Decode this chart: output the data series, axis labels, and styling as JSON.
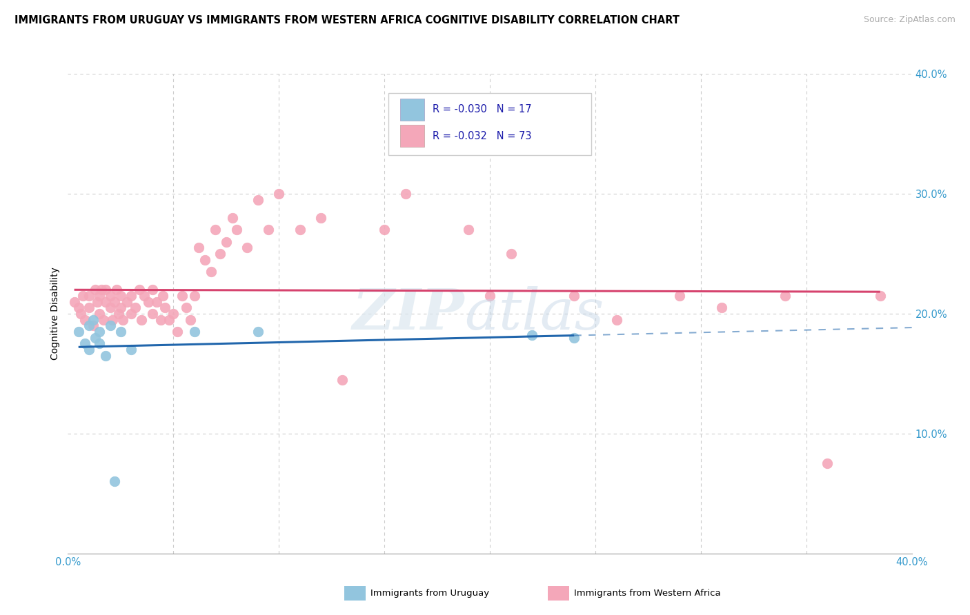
{
  "title": "IMMIGRANTS FROM URUGUAY VS IMMIGRANTS FROM WESTERN AFRICA COGNITIVE DISABILITY CORRELATION CHART",
  "source": "Source: ZipAtlas.com",
  "ylabel": "Cognitive Disability",
  "xlim": [
    0.0,
    0.4
  ],
  "ylim": [
    0.0,
    0.4
  ],
  "grid_color": "#cccccc",
  "legend_R1": "-0.030",
  "legend_N1": "17",
  "legend_R2": "-0.032",
  "legend_N2": "73",
  "color_uruguay": "#92c5de",
  "color_w_africa": "#f4a7b9",
  "line_color_uruguay": "#2166ac",
  "line_color_w_africa": "#d6436e",
  "uruguay_x": [
    0.005,
    0.008,
    0.01,
    0.01,
    0.012,
    0.013,
    0.015,
    0.015,
    0.018,
    0.02,
    0.022,
    0.025,
    0.03,
    0.06,
    0.09,
    0.22,
    0.24
  ],
  "uruguay_y": [
    0.185,
    0.175,
    0.17,
    0.19,
    0.195,
    0.18,
    0.185,
    0.175,
    0.165,
    0.19,
    0.06,
    0.185,
    0.17,
    0.185,
    0.185,
    0.182,
    0.18
  ],
  "w_africa_x": [
    0.003,
    0.005,
    0.006,
    0.007,
    0.008,
    0.01,
    0.01,
    0.012,
    0.013,
    0.014,
    0.015,
    0.015,
    0.016,
    0.017,
    0.018,
    0.018,
    0.02,
    0.02,
    0.021,
    0.022,
    0.023,
    0.024,
    0.025,
    0.025,
    0.026,
    0.028,
    0.03,
    0.03,
    0.032,
    0.034,
    0.035,
    0.036,
    0.038,
    0.04,
    0.04,
    0.042,
    0.044,
    0.045,
    0.046,
    0.048,
    0.05,
    0.052,
    0.054,
    0.056,
    0.058,
    0.06,
    0.062,
    0.065,
    0.068,
    0.07,
    0.072,
    0.075,
    0.078,
    0.08,
    0.085,
    0.09,
    0.095,
    0.1,
    0.11,
    0.12,
    0.13,
    0.15,
    0.16,
    0.19,
    0.2,
    0.21,
    0.24,
    0.26,
    0.29,
    0.31,
    0.34,
    0.36,
    0.385
  ],
  "w_africa_y": [
    0.21,
    0.205,
    0.2,
    0.215,
    0.195,
    0.205,
    0.215,
    0.19,
    0.22,
    0.21,
    0.2,
    0.215,
    0.22,
    0.195,
    0.21,
    0.22,
    0.205,
    0.215,
    0.195,
    0.21,
    0.22,
    0.2,
    0.215,
    0.205,
    0.195,
    0.21,
    0.2,
    0.215,
    0.205,
    0.22,
    0.195,
    0.215,
    0.21,
    0.2,
    0.22,
    0.21,
    0.195,
    0.215,
    0.205,
    0.195,
    0.2,
    0.185,
    0.215,
    0.205,
    0.195,
    0.215,
    0.255,
    0.245,
    0.235,
    0.27,
    0.25,
    0.26,
    0.28,
    0.27,
    0.255,
    0.295,
    0.27,
    0.3,
    0.27,
    0.28,
    0.145,
    0.27,
    0.3,
    0.27,
    0.215,
    0.25,
    0.215,
    0.195,
    0.215,
    0.205,
    0.215,
    0.075,
    0.215
  ]
}
